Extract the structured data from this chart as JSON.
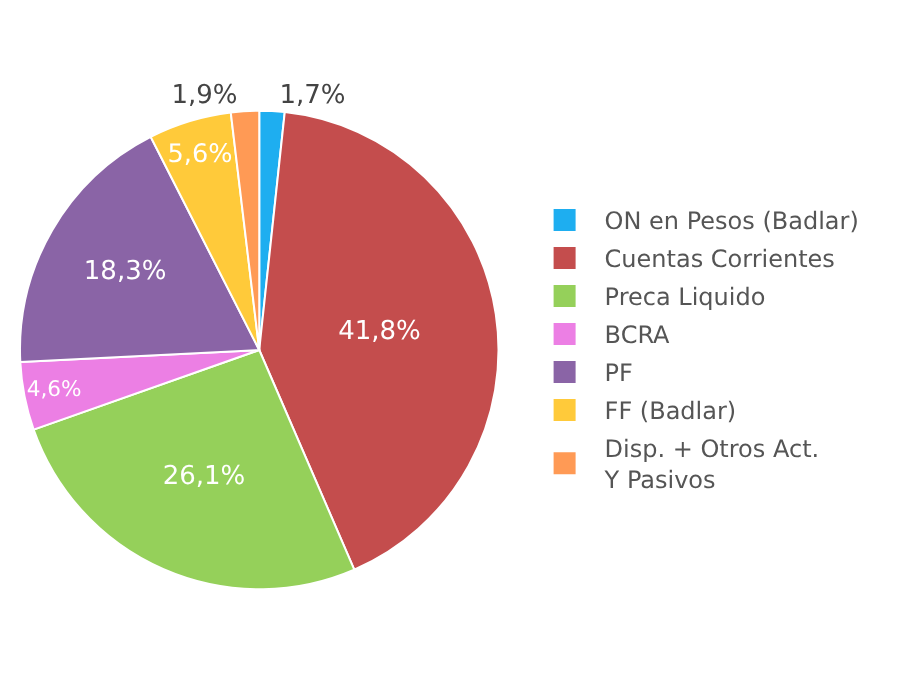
{
  "chart_data": {
    "type": "pie",
    "categories": [
      "ON en Pesos (Badlar)",
      "Cuentas Corrientes",
      "Preca Liquido",
      "BCRA",
      "PF",
      "FF (Badlar)",
      "Disp. + Otros Act.\nY Pasivos"
    ],
    "values": [
      1.7,
      41.8,
      26.1,
      4.6,
      18.3,
      5.6,
      1.9
    ],
    "value_labels": [
      "1,7%",
      "41,8%",
      "26,1%",
      "4,6%",
      "18,3%",
      "5,6%",
      "1,9%"
    ],
    "colors": [
      "#1eaef0",
      "#c44d4d",
      "#95d05a",
      "#ec7fe4",
      "#8a64a6",
      "#ffca3a",
      "#ff9a55"
    ],
    "legend": "right"
  }
}
